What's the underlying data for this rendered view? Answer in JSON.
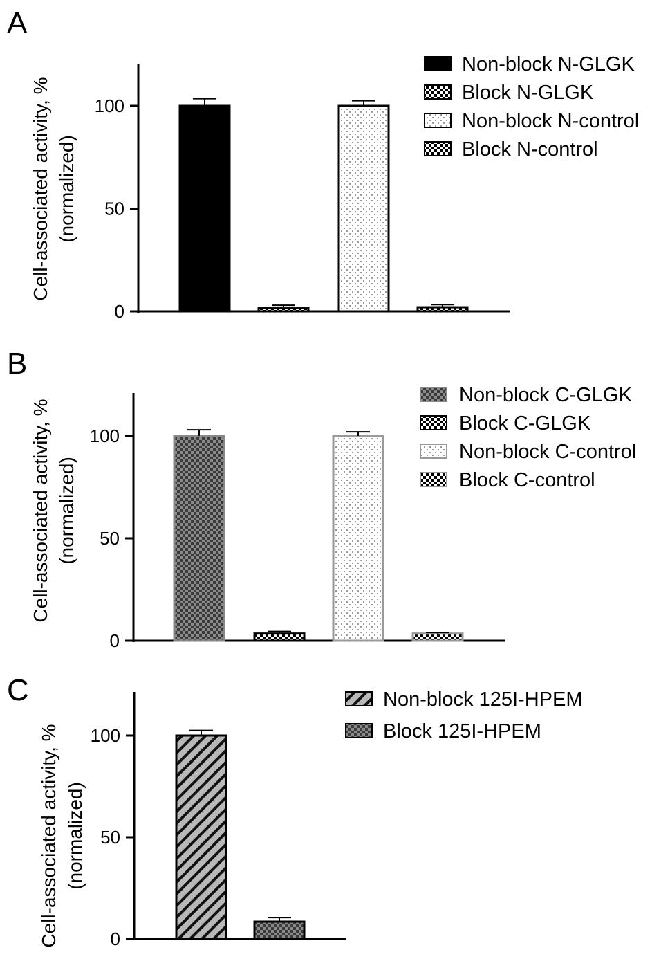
{
  "chart_data": [
    {
      "type": "bar",
      "panel_label": "A",
      "ylabel_line1": "Cell-associated activity, %",
      "ylabel_line2": "(normalized)",
      "ylim": [
        0,
        120
      ],
      "yticks": [
        0,
        50,
        100
      ],
      "grid": false,
      "legend_position": "top-right",
      "categories": [
        "Non-block N-GLGK",
        "Block N-GLGK",
        "Non-block N-control",
        "Block N-control"
      ],
      "values": [
        100,
        1.5,
        100,
        2
      ],
      "errors": [
        3.5,
        1.5,
        2.5,
        1.3
      ],
      "series_styles": [
        {
          "pattern": "solid-black",
          "fill": "#000000",
          "stroke": "#000000"
        },
        {
          "pattern": "check-black",
          "fill": "#000000",
          "stroke": "#000000"
        },
        {
          "pattern": "dots-white",
          "fill": "#ffffff",
          "stroke": "#000000"
        },
        {
          "pattern": "check-black",
          "fill": "#000000",
          "stroke": "#000000"
        }
      ]
    },
    {
      "type": "bar",
      "panel_label": "B",
      "ylabel_line1": "Cell-associated activity, %",
      "ylabel_line2": "(normalized)",
      "ylim": [
        0,
        120
      ],
      "yticks": [
        0,
        50,
        100
      ],
      "grid": false,
      "legend_position": "top-right",
      "categories": [
        "Non-block C-GLGK",
        "Block C-GLGK",
        "Non-block C-control",
        "Block C-control"
      ],
      "values": [
        100,
        3.5,
        100,
        3.5
      ],
      "errors": [
        3,
        1,
        2,
        0.5
      ],
      "series_styles": [
        {
          "pattern": "check-gray",
          "fill": "#555555",
          "stroke": "#888888"
        },
        {
          "pattern": "check-black",
          "fill": "#000000",
          "stroke": "#000000"
        },
        {
          "pattern": "dots-white",
          "fill": "#ffffff",
          "stroke": "#999999"
        },
        {
          "pattern": "check-black",
          "fill": "#000000",
          "stroke": "#999999"
        }
      ]
    },
    {
      "type": "bar",
      "panel_label": "C",
      "ylabel_line1": "Cell-associated activity, %",
      "ylabel_line2": "(normalized)",
      "ylim": [
        0,
        120
      ],
      "yticks": [
        0,
        50,
        100
      ],
      "grid": false,
      "legend_position": "top-right",
      "categories": [
        "Non-block 125I-HPEM",
        "Block 125I-HPEM"
      ],
      "values": [
        100,
        8.5
      ],
      "errors": [
        2.5,
        2
      ],
      "series_styles": [
        {
          "pattern": "diag-gray",
          "fill": "#aaaaaa",
          "stroke": "#000000"
        },
        {
          "pattern": "check-gray",
          "fill": "#444444",
          "stroke": "#000000"
        }
      ]
    }
  ]
}
